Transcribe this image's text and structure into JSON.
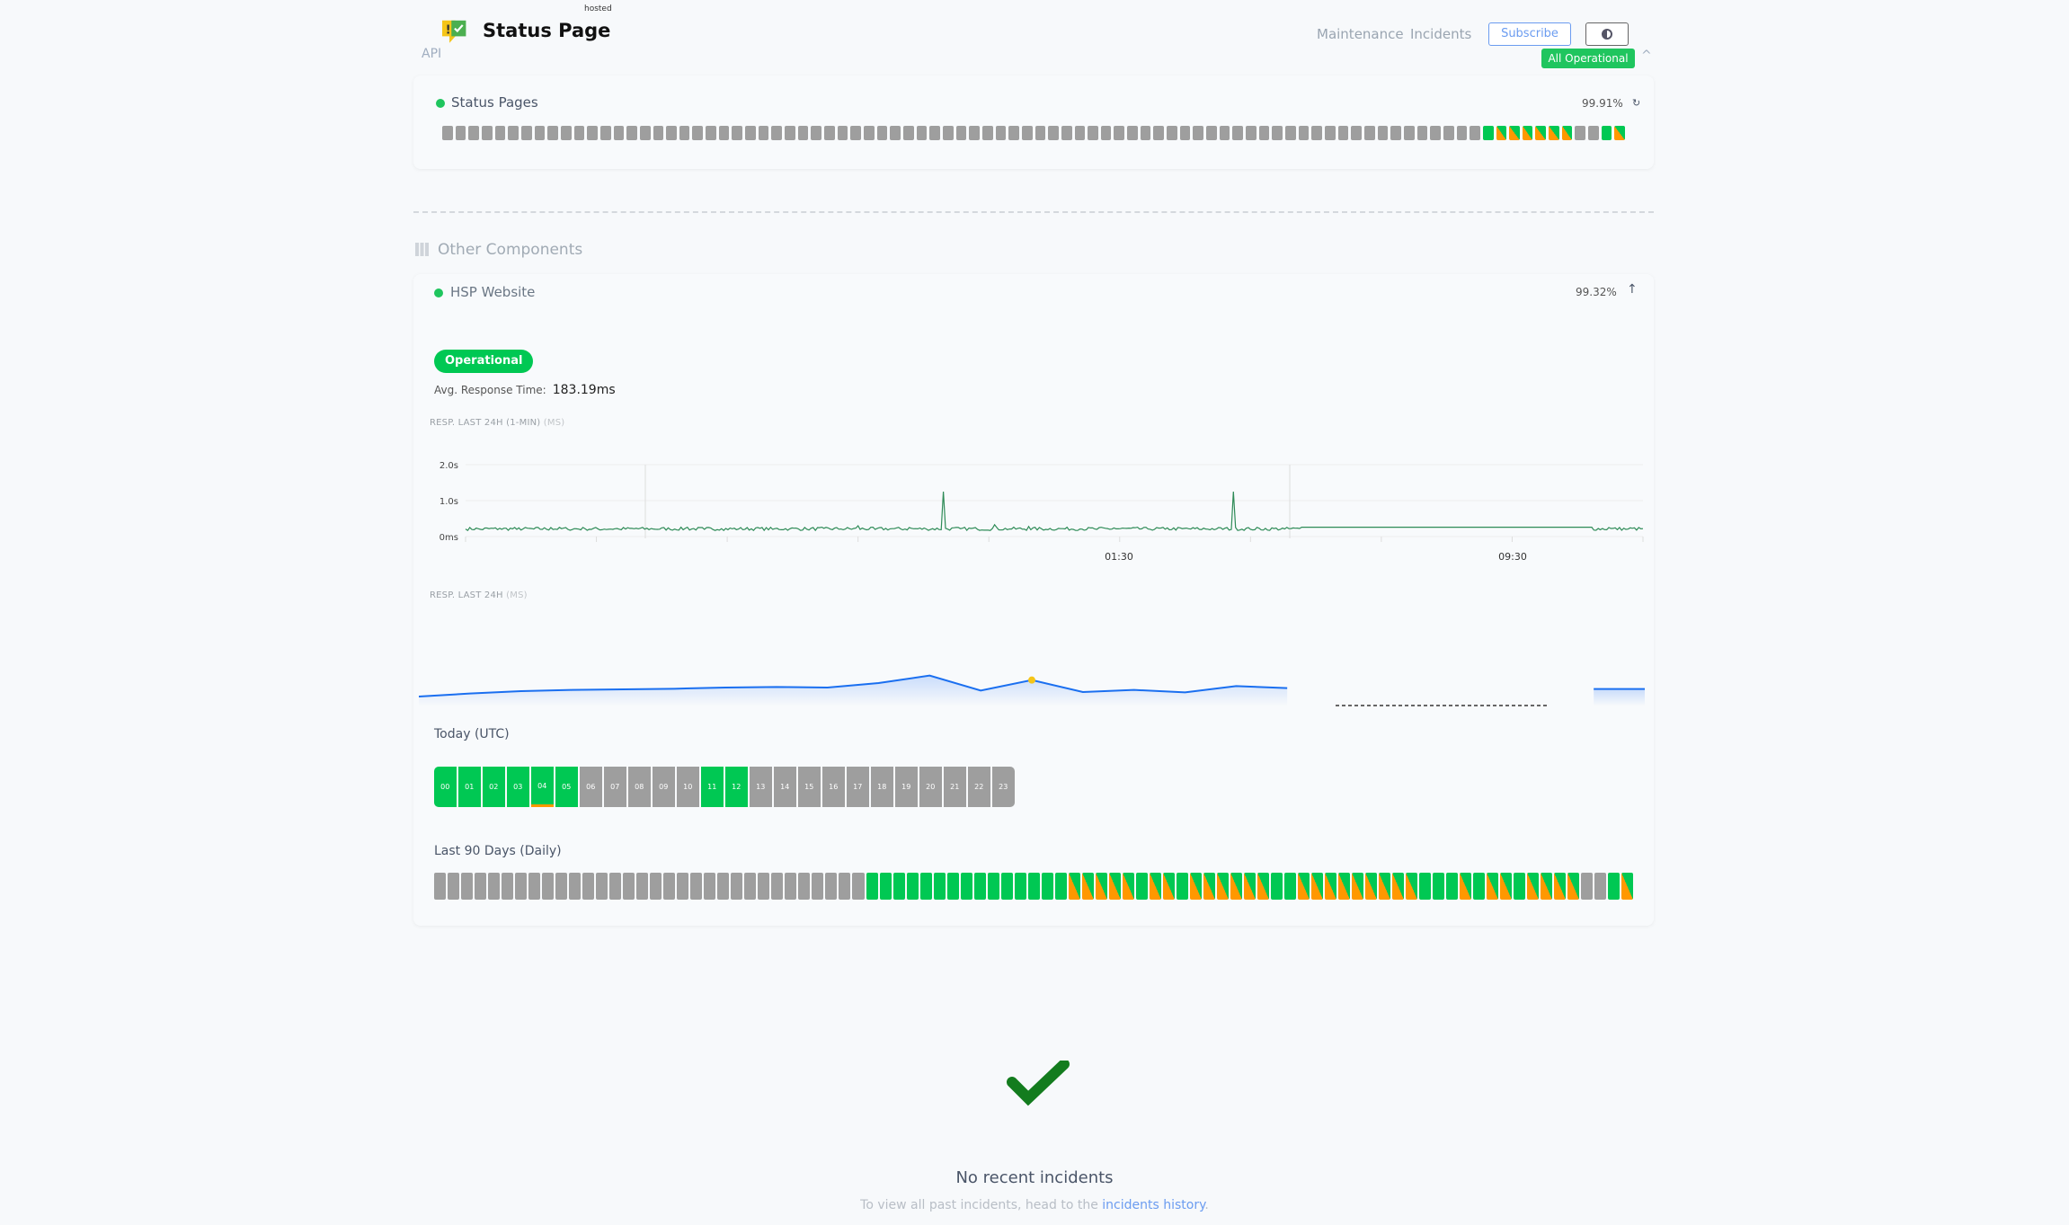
{
  "header": {
    "logo_text": "Status Page",
    "logo_sub": "hosted",
    "api_label": "API",
    "nav": [
      "Maintenance",
      "Incidents"
    ],
    "subscribe": "Subscribe",
    "overall_status": "All Operational"
  },
  "status_pages": {
    "name": "Status Pages",
    "uptime": "99.91%",
    "bars": "gggggggggggggggggggggggggggggggggggggggggggggggggggggggggggggggggggggggggggggggGOOOOOOggGO"
  },
  "other": {
    "title": "Other Components"
  },
  "hsp": {
    "name": "HSP Website",
    "uptime": "99.32%",
    "status": "Operational",
    "avg_label": "Avg. Response Time:",
    "avg_value": "183.19ms",
    "chart1_label": "RESP. LAST 24H (1-MIN)",
    "chart1_unit": "(MS)",
    "chart2_label": "RESP. LAST 24H",
    "chart2_unit": "(MS)",
    "today_label": "Today (UTC)",
    "hours": [
      "00",
      "01",
      "02",
      "03",
      "04",
      "05",
      "06",
      "07",
      "08",
      "09",
      "10",
      "11",
      "12",
      "13",
      "14",
      "15",
      "16",
      "17",
      "18",
      "19",
      "20",
      "21",
      "22",
      "23"
    ],
    "hour_status": "GGGGGGgggggGGggggggggggg",
    "days_label": "Last 90 Days (Daily)",
    "days": "ggggggggggggggggggggggggggggggggGGGGGGGGGGGGGGGOOOOOGOOGOOOOOOGGOOOOOOOOOGGGOGOOGOOOOggGO"
  },
  "colors": {
    "green": "#00c853",
    "orange": "#ff9800",
    "gray": "#9e9e9e",
    "line": "#2e8b57",
    "blue": "#1a6ff0"
  },
  "chart_data": [
    {
      "type": "line",
      "yticks": [
        "0ms",
        "1.0s",
        "2.0s"
      ],
      "ylim": [
        0,
        2000
      ],
      "xticks": [
        "01:30",
        "09:30"
      ],
      "values": [
        210,
        190,
        230,
        200,
        210,
        250,
        200,
        220,
        190,
        205,
        230,
        210,
        195,
        260,
        200,
        220,
        210,
        240,
        200,
        215,
        205,
        230,
        210,
        300,
        200,
        220,
        250,
        210,
        1250,
        220,
        200,
        330,
        210,
        280,
        200,
        220,
        210,
        200,
        240,
        230,
        210,
        205,
        220,
        200,
        210,
        1250,
        200,
        180,
        210,
        260,
        260,
        260,
        260,
        260,
        260,
        260,
        260,
        260,
        260,
        260,
        260,
        260,
        260,
        260,
        260,
        260,
        260,
        250,
        200,
        220
      ]
    },
    {
      "type": "area",
      "values": [
        150,
        160,
        168,
        172,
        174,
        176,
        180,
        182,
        180,
        195,
        220,
        170,
        205,
        165,
        172,
        164,
        185,
        178,
        null,
        null,
        null,
        null,
        null,
        175,
        175
      ],
      "highlight_index": 12
    }
  ],
  "incidents": {
    "title": "No recent incidents",
    "sub": "To view all past incidents, head to the ",
    "link": "incidents history",
    "end": "."
  }
}
